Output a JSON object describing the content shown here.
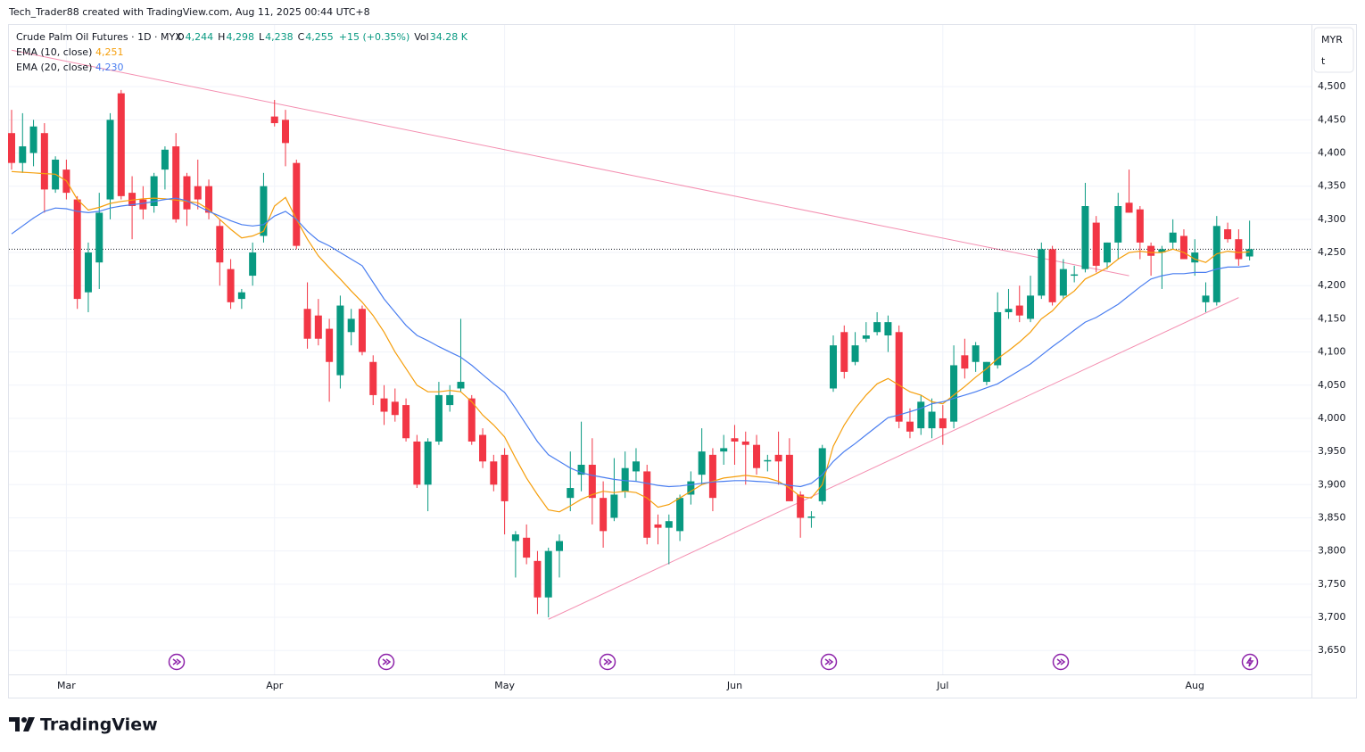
{
  "header": {
    "credit": "Tech_Trader88 created with TradingView.com, Aug 11, 2025 00:44 UTC+8",
    "logo": "TradingView"
  },
  "chart_data": {
    "type": "candlestick",
    "title": "Crude Palm Oil Futures · 1D · MYX",
    "ohlc_legend": [
      {
        "key": "O",
        "value": "4,244"
      },
      {
        "key": "H",
        "value": "4,298"
      },
      {
        "key": "L",
        "value": "4,238"
      },
      {
        "key": "C",
        "value": "4,255"
      },
      {
        "key": "",
        "value": "+15 (+0.35%)"
      },
      {
        "key": "Vol",
        "value": "34.28 K"
      }
    ],
    "currency": "MYR",
    "unit": "t",
    "up_color": "#089981",
    "down_color": "#f23645",
    "categories": [
      null,
      null,
      null,
      null,
      null,
      "Mar",
      null,
      null,
      null,
      null,
      null,
      null,
      null,
      null,
      null,
      null,
      null,
      null,
      null,
      null,
      null,
      null,
      null,
      null,
      "Apr",
      null,
      null,
      null,
      null,
      null,
      null,
      null,
      null,
      null,
      null,
      null,
      null,
      null,
      null,
      null,
      null,
      null,
      null,
      null,
      null,
      "May",
      null,
      null,
      null,
      null,
      null,
      null,
      null,
      null,
      null,
      null,
      null,
      null,
      null,
      null,
      null,
      null,
      null,
      null,
      null,
      null,
      "Jun",
      null,
      null,
      null,
      null,
      null,
      null,
      null,
      null,
      null,
      null,
      null,
      null,
      null,
      null,
      null,
      null,
      null,
      null,
      "Jul",
      null,
      null,
      null,
      null,
      null,
      null,
      null,
      null,
      null,
      null,
      null,
      null,
      null,
      null,
      null,
      null,
      null,
      null,
      null,
      null,
      null,
      null,
      "Aug",
      null,
      null,
      null,
      null,
      null
    ],
    "open": [
      4430,
      4385,
      4400,
      4430,
      4345,
      4375,
      4330,
      4190,
      4235,
      4330,
      4490,
      4340,
      4330,
      4320,
      4375,
      4410,
      4365,
      4350,
      4350,
      4290,
      4225,
      4180,
      4215,
      4275,
      4455,
      4450,
      4385,
      4165,
      4155,
      4135,
      4065,
      4130,
      4165,
      4085,
      4030,
      4025,
      4020,
      3965,
      3900,
      3965,
      4020,
      4045,
      4030,
      3975,
      3935,
      3945,
      3815,
      3820,
      3785,
      3730,
      3800,
      3880,
      3915,
      3930,
      3880,
      3850,
      3890,
      3920,
      3920,
      3840,
      3835,
      3830,
      3885,
      3915,
      3945,
      3950,
      3970,
      3965,
      3960,
      3935,
      3945,
      3945,
      3885,
      3850,
      3875,
      4045,
      4130,
      4085,
      4120,
      4130,
      4125,
      4130,
      3995,
      3985,
      3985,
      4000,
      3995,
      4095,
      4085,
      4055,
      4080,
      4160,
      4170,
      4150,
      4185,
      4255,
      4185,
      4215,
      4225,
      4295,
      4235,
      4265,
      4325,
      4315,
      4260,
      4250,
      4265,
      4275,
      4235,
      4175,
      4175,
      4285,
      4270,
      4244
    ],
    "high": [
      4465,
      4460,
      4450,
      4445,
      4395,
      4390,
      4335,
      4265,
      4340,
      4460,
      4495,
      4365,
      4350,
      4370,
      4410,
      4430,
      4370,
      4390,
      4360,
      4300,
      4240,
      4195,
      4265,
      4370,
      4480,
      4465,
      4390,
      4205,
      4180,
      4150,
      4185,
      4165,
      4170,
      4095,
      4050,
      4045,
      4030,
      3975,
      3970,
      4055,
      4050,
      4150,
      4035,
      3985,
      3945,
      3955,
      3830,
      3840,
      3800,
      3805,
      3825,
      3950,
      3995,
      3970,
      3905,
      3940,
      3950,
      3955,
      3930,
      3855,
      3855,
      3885,
      3920,
      3985,
      3955,
      3975,
      3990,
      3980,
      3975,
      3945,
      3980,
      3970,
      3890,
      3860,
      3960,
      4125,
      4140,
      4130,
      4145,
      4160,
      4155,
      4140,
      4015,
      4035,
      4030,
      4020,
      4110,
      4120,
      4115,
      4085,
      4190,
      4195,
      4200,
      4215,
      4265,
      4260,
      4240,
      4230,
      4355,
      4305,
      4265,
      4340,
      4375,
      4320,
      4265,
      4260,
      4300,
      4285,
      4270,
      4205,
      4305,
      4295,
      4285,
      4298
    ],
    "low": [
      4375,
      4370,
      4380,
      4310,
      4340,
      4330,
      4165,
      4160,
      4195,
      4300,
      4330,
      4270,
      4300,
      4310,
      4345,
      4295,
      4290,
      4315,
      4300,
      4200,
      4165,
      4165,
      4200,
      4265,
      4440,
      4380,
      4255,
      4105,
      4110,
      4025,
      4045,
      4110,
      4095,
      4020,
      3990,
      3995,
      3965,
      3895,
      3860,
      3960,
      4010,
      4040,
      3960,
      3925,
      3890,
      3825,
      3760,
      3780,
      3705,
      3700,
      3760,
      3860,
      3890,
      3840,
      3805,
      3845,
      3880,
      3905,
      3810,
      3810,
      3780,
      3815,
      3870,
      3900,
      3860,
      3930,
      3930,
      3900,
      3915,
      3920,
      3900,
      3880,
      3820,
      3835,
      3870,
      4040,
      4060,
      4080,
      4115,
      4125,
      4100,
      3985,
      3970,
      3975,
      3970,
      3960,
      3985,
      4060,
      4070,
      4050,
      4075,
      4150,
      4145,
      4145,
      4180,
      4170,
      4180,
      4205,
      4220,
      4220,
      4225,
      4240,
      4310,
      4240,
      4215,
      4195,
      4255,
      4240,
      4215,
      4160,
      4170,
      4265,
      4230,
      4238
    ],
    "close": [
      4385,
      4410,
      4440,
      4345,
      4390,
      4340,
      4180,
      4250,
      4310,
      4450,
      4335,
      4320,
      4315,
      4365,
      4405,
      4300,
      4315,
      4330,
      4310,
      4235,
      4175,
      4190,
      4250,
      4350,
      4445,
      4415,
      4260,
      4120,
      4120,
      4085,
      4170,
      4150,
      4100,
      4035,
      4010,
      4005,
      3970,
      3900,
      3965,
      4035,
      4035,
      4055,
      3965,
      3935,
      3900,
      3875,
      3825,
      3790,
      3730,
      3800,
      3815,
      3895,
      3930,
      3880,
      3830,
      3885,
      3925,
      3935,
      3820,
      3835,
      3845,
      3880,
      3905,
      3950,
      3880,
      3955,
      3965,
      3960,
      3925,
      3937,
      3935,
      3875,
      3850,
      3852,
      3955,
      4110,
      4070,
      4110,
      4125,
      4145,
      4145,
      3995,
      3980,
      4025,
      4010,
      3985,
      4080,
      4075,
      4110,
      4085,
      4160,
      4165,
      4155,
      4185,
      4255,
      4175,
      4225,
      4217,
      4320,
      4230,
      4265,
      4320,
      4310,
      4265,
      4245,
      4255,
      4280,
      4240,
      4250,
      4185,
      4290,
      4270,
      4240,
      4255
    ],
    "series": [
      {
        "name": "EMA (10, close)",
        "color": "#f59e0b",
        "last_label": "4,251",
        "values": [
          4372,
          4371,
          4370,
          4369,
          4368,
          4358,
          4330,
          4314,
          4318,
          4324,
          4327,
          4329,
          4331,
          4332,
          4331,
          4329,
          4327,
          4325,
          4315,
          4300,
          4285,
          4272,
          4275,
          4282,
          4320,
          4333,
          4300,
          4270,
          4245,
          4227,
          4210,
          4192,
          4175,
          4155,
          4130,
          4100,
          4075,
          4050,
          4040,
          4040,
          4042,
          4040,
          4025,
          4005,
          3990,
          3972,
          3940,
          3910,
          3885,
          3862,
          3859,
          3868,
          3878,
          3885,
          3890,
          3888,
          3890,
          3888,
          3880,
          3866,
          3870,
          3880,
          3890,
          3900,
          3905,
          3910,
          3912,
          3914,
          3912,
          3910,
          3905,
          3895,
          3882,
          3880,
          3900,
          3958,
          3990,
          4015,
          4035,
          4052,
          4060,
          4050,
          4040,
          4035,
          4025,
          4022,
          4035,
          4048,
          4062,
          4075,
          4090,
          4102,
          4115,
          4130,
          4150,
          4162,
          4180,
          4192,
          4210,
          4218,
          4227,
          4240,
          4250,
          4252,
          4250,
          4250,
          4255,
          4250,
          4240,
          4235,
          4248,
          4252,
          4250,
          4251
        ]
      },
      {
        "name": "EMA (20, close)",
        "color": "#4a7ef0",
        "last_label": "4,230",
        "values": [
          4278,
          4290,
          4302,
          4312,
          4317,
          4316,
          4312,
          4310,
          4312,
          4317,
          4320,
          4322,
          4324,
          4327,
          4330,
          4332,
          4328,
          4320,
          4312,
          4305,
          4298,
          4292,
          4290,
          4292,
          4305,
          4312,
          4300,
          4282,
          4268,
          4260,
          4250,
          4240,
          4230,
          4205,
          4180,
          4160,
          4140,
          4125,
          4117,
          4108,
          4100,
          4092,
          4080,
          4066,
          4052,
          4039,
          4015,
          3990,
          3965,
          3945,
          3935,
          3925,
          3918,
          3914,
          3911,
          3908,
          3906,
          3905,
          3902,
          3899,
          3897,
          3898,
          3900,
          3902,
          3904,
          3905,
          3906,
          3906,
          3905,
          3904,
          3902,
          3899,
          3897,
          3902,
          3915,
          3935,
          3950,
          3962,
          3975,
          3988,
          4001,
          4005,
          4010,
          4015,
          4022,
          4025,
          4030,
          4035,
          4040,
          4046,
          4052,
          4062,
          4072,
          4082,
          4095,
          4108,
          4120,
          4133,
          4145,
          4152,
          4162,
          4172,
          4185,
          4198,
          4210,
          4215,
          4218,
          4218,
          4220,
          4220,
          4225,
          4228,
          4228,
          4230
        ]
      }
    ],
    "trendlines": [
      {
        "color": "#f48fb1",
        "from": [
          0,
          4555
        ],
        "to": [
          102,
          4215
        ]
      },
      {
        "color": "#f48fb1",
        "from": [
          49,
          3697
        ],
        "to": [
          112,
          4182
        ]
      }
    ],
    "last_price": 4255,
    "ylim": [
      3579,
      4593
    ],
    "yticks": [
      {
        "value": 3650,
        "label": "3,650"
      },
      {
        "value": 3700,
        "label": "3,700"
      },
      {
        "value": 3750,
        "label": "3,750"
      },
      {
        "value": 3800,
        "label": "3,800"
      },
      {
        "value": 3850,
        "label": "3,850"
      },
      {
        "value": 3900,
        "label": "3,900"
      },
      {
        "value": 3950,
        "label": "3,950"
      },
      {
        "value": 4000,
        "label": "4,000"
      },
      {
        "value": 4050,
        "label": "4,050"
      },
      {
        "value": 4100,
        "label": "4,100"
      },
      {
        "value": 4150,
        "label": "4,150"
      },
      {
        "value": 4200,
        "label": "4,200"
      },
      {
        "value": 4250,
        "label": "4,250"
      },
      {
        "value": 4300,
        "label": "4,300"
      },
      {
        "value": 4350,
        "label": "4,350"
      },
      {
        "value": 4400,
        "label": "4,400"
      },
      {
        "value": 4450,
        "label": "4,450"
      },
      {
        "value": 4500,
        "label": "4,500"
      }
    ],
    "grid": true
  }
}
